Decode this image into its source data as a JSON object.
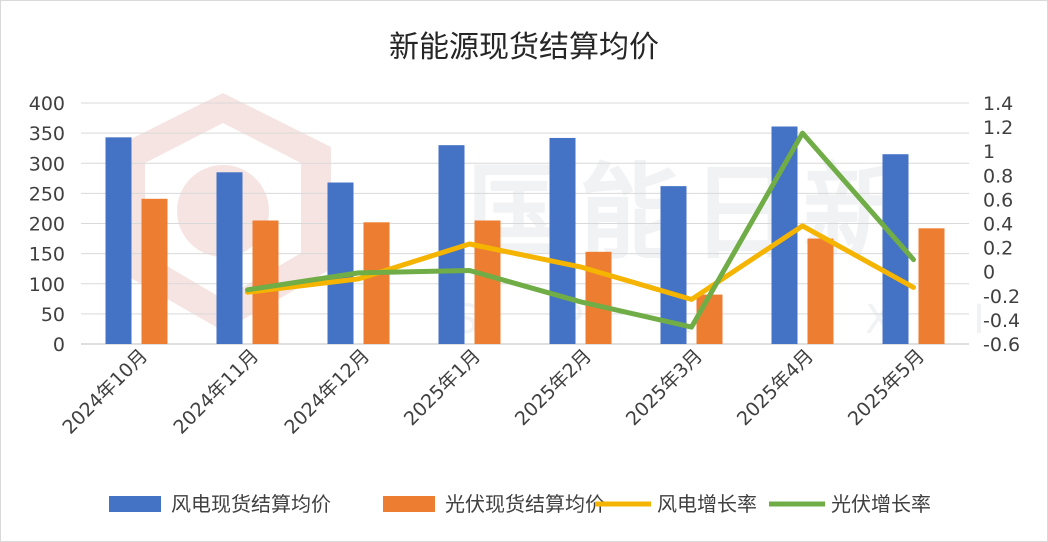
{
  "chart_data": {
    "type": "bar",
    "title": "新能源现货结算均价",
    "categories": [
      "2024年10月",
      "2024年11月",
      "2024年12月",
      "2025年1月",
      "2025年2月",
      "2025年3月",
      "2025年4月",
      "2025年5月"
    ],
    "series": [
      {
        "name": "风电现货结算均价",
        "type": "bar",
        "axis": "left",
        "color": "#4472c4",
        "values": [
          343,
          285,
          268,
          330,
          342,
          262,
          361,
          315
        ]
      },
      {
        "name": "光伏现货结算均价",
        "type": "bar",
        "axis": "left",
        "color": "#ed7d31",
        "values": [
          241,
          205,
          202,
          205,
          153,
          82,
          175,
          192
        ]
      },
      {
        "name": "风电增长率",
        "type": "line",
        "axis": "right",
        "color": "#f4b400",
        "values": [
          null,
          -0.17,
          -0.06,
          0.23,
          0.04,
          -0.23,
          0.38,
          -0.13
        ]
      },
      {
        "name": "光伏增长率",
        "type": "line",
        "axis": "right",
        "color": "#70ad47",
        "values": [
          null,
          -0.15,
          -0.01,
          0.01,
          -0.25,
          -0.46,
          1.15,
          0.1
        ]
      }
    ],
    "y_left": {
      "min": 0,
      "max": 400,
      "ticks": [
        "0",
        "50",
        "100",
        "150",
        "200",
        "250",
        "300",
        "350",
        "400"
      ]
    },
    "y_right": {
      "min": -0.6,
      "max": 1.4,
      "ticks": [
        "-0.6",
        "-0.4",
        "-0.2",
        "0",
        "0.2",
        "0.4",
        "0.6",
        "0.8",
        "1",
        "1.2",
        "1.4"
      ]
    },
    "grid": true,
    "legend_position": "bottom"
  },
  "watermark": {
    "text": "国能日新",
    "subtext": "S P R I X I N"
  }
}
